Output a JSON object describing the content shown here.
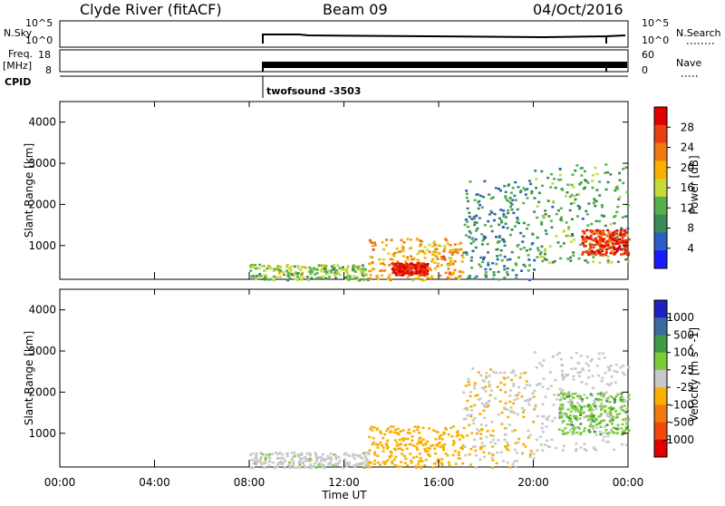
{
  "header": {
    "station": "Clyde River (fitACF)",
    "beam": "Beam 09",
    "date": "04/Oct/2016"
  },
  "top_panels": {
    "nsky_label": "N.Sky",
    "nsky_ticks": [
      "10^5",
      "10^0"
    ],
    "nsearch_label": "N.Search",
    "nsearch_ticks": [
      "10^5",
      "10^0"
    ],
    "freq_label_line1": "Freq.",
    "freq_label_line2": "[MHz]",
    "freq_ticks": [
      "18",
      "8"
    ],
    "nave_label": "Nave",
    "nave_ticks": [
      "60",
      "0"
    ],
    "cpid_label": "CPID",
    "cpid_text": "twofsound -3503"
  },
  "time_axis": {
    "ticks": [
      "00:00",
      "04:00",
      "08:00",
      "12:00",
      "16:00",
      "20:00",
      "00:00"
    ],
    "label": "Time UT"
  },
  "colors": {
    "power": [
      "#1a1aff",
      "#2d5bc8",
      "#3a8a5a",
      "#56b04a",
      "#c8d838",
      "#f7b000",
      "#f07a10",
      "#e84010",
      "#e00000"
    ],
    "velocity": [
      "#e00000",
      "#f04a0a",
      "#f07a10",
      "#f7b000",
      "#c8c8c8",
      "#7ccc3a",
      "#3f9a4a",
      "#3a6aa0",
      "#2020c0"
    ]
  },
  "chart_data": [
    {
      "type": "heatmap",
      "panel": "power",
      "ylabel": "Slant Range [km]",
      "ylim": [
        180,
        4500
      ],
      "yticks": [
        "1000",
        "2000",
        "3000",
        "4000"
      ],
      "x_range": [
        "00:00",
        "00:00"
      ],
      "colorbar_label": "Power [dB]",
      "colorbar_ticks": [
        "4",
        "8",
        "12",
        "16",
        "20",
        "24",
        "28"
      ],
      "scatter_regions_hours": [
        {
          "x": [
            8.0,
            13.0
          ],
          "y": [
            180,
            560
          ],
          "value_db": 14
        },
        {
          "x": [
            13.0,
            17.0
          ],
          "y": [
            180,
            1200
          ],
          "value_db": 20
        },
        {
          "x": [
            14.0,
            15.5
          ],
          "y": [
            300,
            600
          ],
          "value_db": 28
        },
        {
          "x": [
            17.0,
            20.0
          ],
          "y": [
            180,
            2600
          ],
          "value_db": 10
        },
        {
          "x": [
            20.0,
            24.0
          ],
          "y": [
            600,
            3000
          ],
          "value_db": 12
        },
        {
          "x": [
            22.0,
            24.0
          ],
          "y": [
            800,
            1400
          ],
          "value_db": 26
        }
      ]
    },
    {
      "type": "heatmap",
      "panel": "velocity",
      "ylabel": "Slant Range [km]",
      "ylim": [
        180,
        4500
      ],
      "yticks": [
        "1000",
        "2000",
        "3000",
        "4000"
      ],
      "x_range": [
        "00:00",
        "00:00"
      ],
      "colorbar_label": "Velocity [m s^-1]",
      "colorbar_ticks": [
        "-1000",
        "-500",
        "-100",
        "-25",
        "25",
        "100",
        "500",
        "1000"
      ],
      "scatter_regions_hours": [
        {
          "x": [
            8.0,
            13.0
          ],
          "y": [
            180,
            560
          ],
          "value_ms": 50
        },
        {
          "x": [
            13.0,
            17.0
          ],
          "y": [
            180,
            1200
          ],
          "value_ms": -200
        },
        {
          "x": [
            17.0,
            20.0
          ],
          "y": [
            180,
            2600
          ],
          "value_ms": -100
        },
        {
          "x": [
            20.0,
            24.0
          ],
          "y": [
            600,
            3000
          ],
          "value_ms": 0
        },
        {
          "x": [
            21.0,
            24.0
          ],
          "y": [
            1000,
            2000
          ],
          "value_ms": 300
        }
      ]
    }
  ]
}
